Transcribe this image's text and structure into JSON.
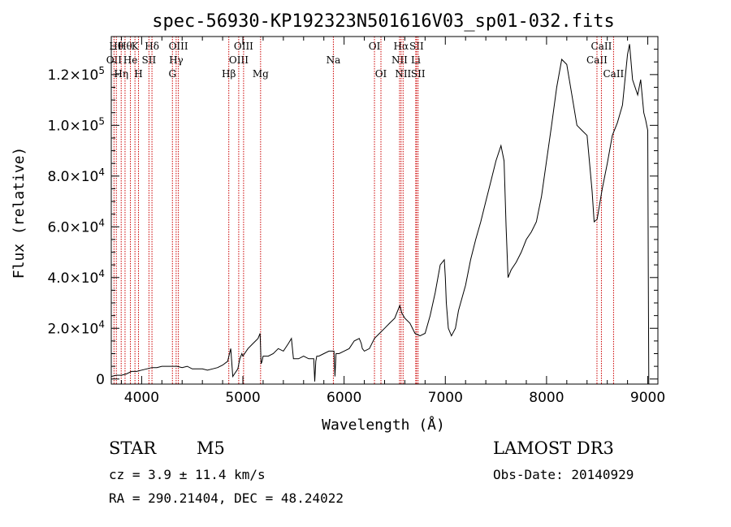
{
  "chart_data": {
    "type": "line",
    "title": "spec-56930-KP192323N501616V03_sp01-032.fits",
    "xlabel": "Wavelength (Å)",
    "ylabel": "Flux (relative)",
    "xlim": [
      3700,
      9100
    ],
    "ylim": [
      -2000,
      135000
    ],
    "x_ticks": [
      {
        "value": 4000,
        "label": "4000"
      },
      {
        "value": 5000,
        "label": "5000"
      },
      {
        "value": 6000,
        "label": "6000"
      },
      {
        "value": 7000,
        "label": "7000"
      },
      {
        "value": 8000,
        "label": "8000"
      },
      {
        "value": 9000,
        "label": "9000"
      }
    ],
    "y_ticks": [
      {
        "value": 0,
        "mant": "0",
        "exp": ""
      },
      {
        "value": 20000,
        "mant": "2.0×10",
        "exp": "4"
      },
      {
        "value": 40000,
        "mant": "4.0×10",
        "exp": "4"
      },
      {
        "value": 60000,
        "mant": "6.0×10",
        "exp": "4"
      },
      {
        "value": 80000,
        "mant": "8.0×10",
        "exp": "4"
      },
      {
        "value": 100000,
        "mant": "1.0×10",
        "exp": "5"
      },
      {
        "value": 120000,
        "mant": "1.2×10",
        "exp": "5"
      }
    ],
    "series": [
      {
        "name": "flux",
        "x": [
          3700,
          3750,
          3800,
          3850,
          3900,
          3950,
          4000,
          4050,
          4100,
          4150,
          4200,
          4250,
          4300,
          4350,
          4400,
          4450,
          4500,
          4550,
          4600,
          4650,
          4700,
          4750,
          4800,
          4850,
          4880,
          4900,
          4950,
          4970,
          4990,
          5000,
          5050,
          5100,
          5150,
          5170,
          5180,
          5190,
          5200,
          5250,
          5300,
          5350,
          5400,
          5450,
          5480,
          5500,
          5550,
          5600,
          5650,
          5700,
          5710,
          5720,
          5730,
          5750,
          5800,
          5850,
          5900,
          5910,
          5920,
          5950,
          6000,
          6050,
          6100,
          6150,
          6170,
          6180,
          6200,
          6250,
          6300,
          6350,
          6400,
          6450,
          6500,
          6550,
          6570,
          6600,
          6650,
          6700,
          6750,
          6800,
          6850,
          6900,
          6950,
          6990,
          7000,
          7010,
          7030,
          7060,
          7100,
          7130,
          7200,
          7250,
          7300,
          7350,
          7400,
          7450,
          7500,
          7550,
          7580,
          7600,
          7620,
          7650,
          7700,
          7750,
          7800,
          7850,
          7900,
          7950,
          8000,
          8050,
          8100,
          8150,
          8200,
          8250,
          8300,
          8350,
          8400,
          8450,
          8470,
          8500,
          8550,
          8600,
          8650,
          8700,
          8750,
          8780,
          8800,
          8820,
          8850,
          8900,
          8930,
          8960,
          8980,
          9000,
          9005,
          9010
        ],
        "y": [
          1000,
          1500,
          1500,
          2000,
          3000,
          3000,
          3500,
          4000,
          4500,
          4500,
          5000,
          5000,
          5000,
          5000,
          4500,
          5000,
          4000,
          4000,
          4000,
          3500,
          4000,
          4500,
          5500,
          7000,
          12000,
          1000,
          4000,
          8000,
          10000,
          9000,
          12000,
          14000,
          16000,
          18000,
          6000,
          7000,
          9000,
          9000,
          10000,
          12000,
          11000,
          14000,
          16000,
          8000,
          8000,
          9000,
          8000,
          8000,
          -1000,
          7000,
          9000,
          9000,
          10000,
          11000,
          11000,
          1000,
          10000,
          10000,
          11000,
          12000,
          15000,
          16000,
          14000,
          12000,
          11000,
          12000,
          16000,
          18000,
          20000,
          22000,
          24000,
          29000,
          26000,
          24000,
          22000,
          18000,
          17000,
          18000,
          25000,
          34000,
          45000,
          47000,
          40000,
          30000,
          20000,
          17000,
          20000,
          27000,
          37000,
          47000,
          55000,
          62000,
          70000,
          78000,
          86000,
          92000,
          86000,
          60000,
          40000,
          43000,
          46000,
          50000,
          55000,
          58000,
          62000,
          72000,
          86000,
          100000,
          115000,
          126000,
          124000,
          112000,
          100000,
          98000,
          96000,
          74000,
          62000,
          63000,
          75000,
          85000,
          96000,
          101000,
          108000,
          120000,
          128000,
          132000,
          118000,
          112000,
          118000,
          105000,
          102000,
          98000,
          40000,
          -2000
        ]
      }
    ],
    "lines": [
      {
        "wl": 3727,
        "label": "OII",
        "row": 2
      },
      {
        "wl": 3750,
        "label": "Hθ",
        "row": 1
      },
      {
        "wl": 3798,
        "label": "Hη",
        "row": 3
      },
      {
        "wl": 3836,
        "label": "Hθ",
        "row": 1
      },
      {
        "wl": 3889,
        "label": "He",
        "row": 2
      },
      {
        "wl": 3934,
        "label": "K",
        "row": 1
      },
      {
        "wl": 3969,
        "label": "H",
        "row": 3
      },
      {
        "wl": 4072,
        "label": "SII",
        "row": 2
      },
      {
        "wl": 4102,
        "label": "Hδ",
        "row": 1
      },
      {
        "wl": 4304,
        "label": "G",
        "row": 3
      },
      {
        "wl": 4341,
        "label": "Hγ",
        "row": 2
      },
      {
        "wl": 4363,
        "label": "OIII",
        "row": 1
      },
      {
        "wl": 4861,
        "label": "Hβ",
        "row": 3
      },
      {
        "wl": 4959,
        "label": "OIII",
        "row": 2
      },
      {
        "wl": 5007,
        "label": "OIII",
        "row": 1
      },
      {
        "wl": 5175,
        "label": "Mg",
        "row": 3
      },
      {
        "wl": 5894,
        "label": "Na",
        "row": 2
      },
      {
        "wl": 6300,
        "label": "OI",
        "row": 1
      },
      {
        "wl": 6364,
        "label": "OI",
        "row": 3
      },
      {
        "wl": 6548,
        "label": "NII",
        "row": 2
      },
      {
        "wl": 6563,
        "label": "Hα",
        "row": 1
      },
      {
        "wl": 6583,
        "label": "NII",
        "row": 3
      },
      {
        "wl": 6708,
        "label": "Li",
        "row": 2
      },
      {
        "wl": 6716,
        "label": "SII",
        "row": 1
      },
      {
        "wl": 6731,
        "label": "SII",
        "row": 3
      },
      {
        "wl": 8498,
        "label": "CaII",
        "row": 2
      },
      {
        "wl": 8542,
        "label": "CaII",
        "row": 1
      },
      {
        "wl": 8662,
        "label": "CaII",
        "row": 3
      }
    ],
    "line_color": "#cc0000"
  },
  "info": {
    "class": "STAR",
    "subclass": "M5",
    "survey": "LAMOST DR3",
    "cz": "cz = 3.9 ± 11.4 km/s",
    "obs_date": "Obs-Date: 20140929",
    "coords": "RA = 290.21404, DEC =  48.24022"
  }
}
